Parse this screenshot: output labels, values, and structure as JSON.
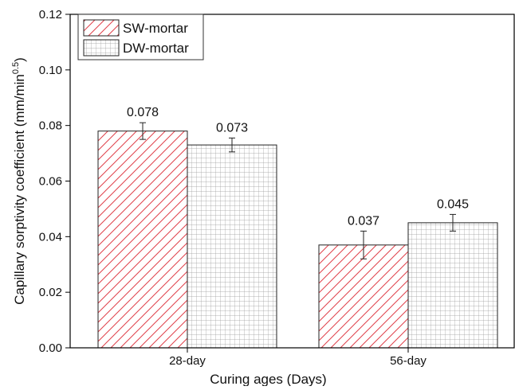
{
  "chart_data": {
    "type": "bar",
    "x_label": "Curing ages (Days)",
    "y_label": {
      "text": "Capillary sorptivity coefficient (mm/min",
      "superscript": "0.5",
      "suffix": ")"
    },
    "categories": [
      "28-day",
      "56-day"
    ],
    "series": [
      {
        "name": "SW-mortar",
        "color": "#e0404a",
        "pattern": "hatch",
        "values": [
          0.078,
          0.037
        ],
        "errors": [
          0.003,
          0.005
        ]
      },
      {
        "name": "DW-mortar",
        "color": "#9a9a9a",
        "pattern": "grid",
        "values": [
          0.073,
          0.045
        ],
        "errors": [
          0.0025,
          0.003
        ]
      }
    ],
    "ylim": [
      0,
      0.12
    ],
    "yticks": [
      {
        "value": 0,
        "label": "0.00"
      },
      0.02,
      0.04,
      0.06,
      0.08,
      {
        "value": 0.1,
        "label": "0.10"
      },
      0.12
    ],
    "legend": "upper-left"
  }
}
